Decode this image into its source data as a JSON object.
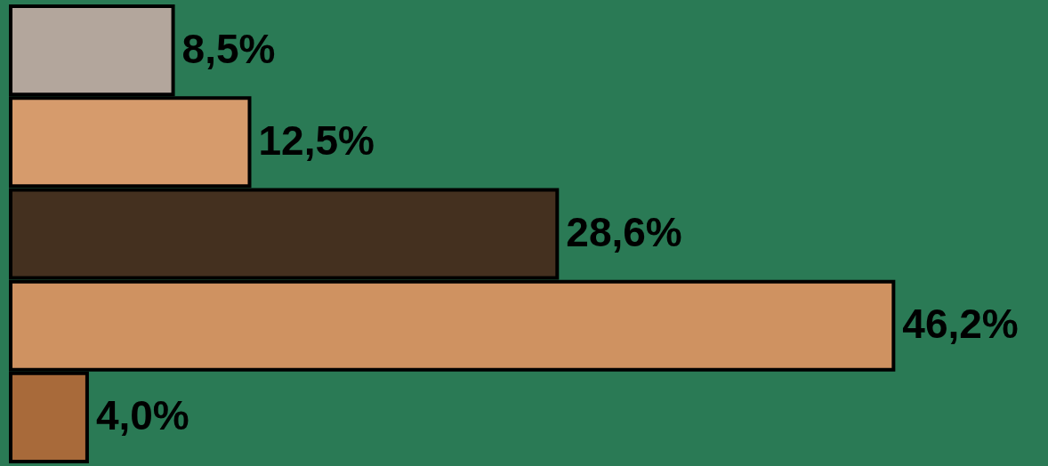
{
  "chart_data": {
    "type": "bar",
    "orientation": "horizontal",
    "categories": [
      null,
      null,
      null,
      null,
      null
    ],
    "values": [
      8.5,
      12.5,
      28.6,
      46.2,
      4.0
    ],
    "colors": [
      "#b3a69c",
      "#d69b6c",
      "#44301f",
      "#cf9261",
      "#a86a3a"
    ],
    "value_labels": [
      "8,5%",
      "12,5%",
      "28,6%",
      "46,2%",
      "4,0%"
    ],
    "tick_labels": false
  }
}
